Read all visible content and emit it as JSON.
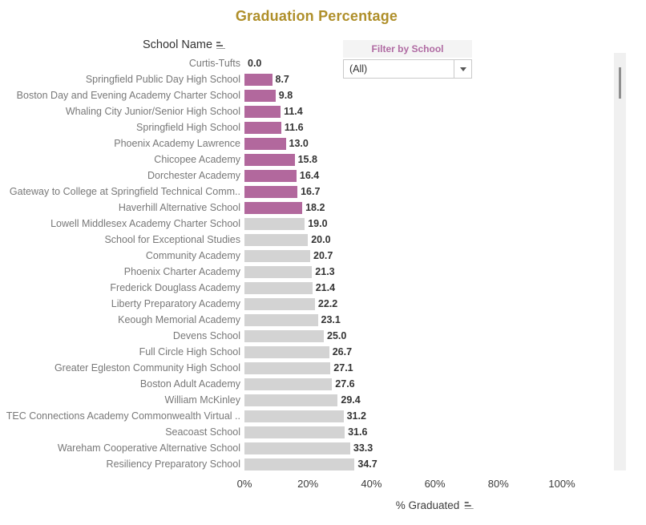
{
  "title": "Graduation Percentage",
  "columns": {
    "school_header": "School Name",
    "axis_title": "% Graduated"
  },
  "filter": {
    "title": "Filter by School",
    "selected_value": "(All)"
  },
  "axis": {
    "tick_labels": [
      "0%",
      "20%",
      "40%",
      "60%",
      "80%",
      "100%"
    ],
    "tick_values": [
      0,
      20,
      40,
      60,
      80,
      100
    ],
    "max": 100
  },
  "icons": {
    "school_header_sort": "sort-icon",
    "axis_sort": "sort-icon",
    "filter_arrow": "chevron-down-icon"
  },
  "colors": {
    "title_text": "#af8f2a",
    "filter_title_text": "#b06ba3",
    "bar_selected": "#b2689d",
    "bar_unselected": "#d3d3d3",
    "row_label_text": "#787878",
    "value_text": "#333333",
    "axis_text": "#3c3c3c"
  },
  "chart_data": {
    "type": "bar",
    "orientation": "horizontal",
    "title": "Graduation Percentage",
    "xlabel": "% Graduated",
    "ylabel": "School Name",
    "xlim": [
      0,
      100
    ],
    "xticks": [
      "0%",
      "20%",
      "40%",
      "60%",
      "80%",
      "100%"
    ],
    "grid": false,
    "value_labels": true,
    "legend": null,
    "categories": [
      "Curtis-Tufts",
      "Springfield Public Day High School",
      "Boston Day and Evening Academy Charter School",
      "Whaling City Junior/Senior High School",
      "Springfield High School",
      "Phoenix Academy Lawrence",
      "Chicopee Academy",
      "Dorchester Academy",
      "Gateway to College at Springfield Technical Comm..",
      "Haverhill Alternative School",
      "Lowell Middlesex Academy Charter School",
      "School for Exceptional Studies",
      "Community Academy",
      "Phoenix Charter Academy",
      "Frederick Douglass Academy",
      "Liberty Preparatory Academy",
      "Keough Memorial Academy",
      "Devens School",
      "Full Circle High School",
      "Greater Egleston Community High School",
      "Boston Adult Academy",
      "William McKinley",
      "TEC Connections Academy Commonwealth Virtual ..",
      "Seacoast School",
      "Wareham Cooperative Alternative School",
      "Resiliency Preparatory School"
    ],
    "values": [
      0.0,
      8.7,
      9.8,
      11.4,
      11.6,
      13.0,
      15.8,
      16.4,
      16.7,
      18.2,
      19.0,
      20.0,
      20.7,
      21.3,
      21.4,
      22.2,
      23.1,
      25.0,
      26.7,
      27.1,
      27.6,
      29.4,
      31.2,
      31.6,
      33.3,
      34.7
    ],
    "highlighted": [
      true,
      true,
      true,
      true,
      true,
      true,
      true,
      true,
      true,
      true,
      false,
      false,
      false,
      false,
      false,
      false,
      false,
      false,
      false,
      false,
      false,
      false,
      false,
      false,
      false,
      false
    ]
  }
}
